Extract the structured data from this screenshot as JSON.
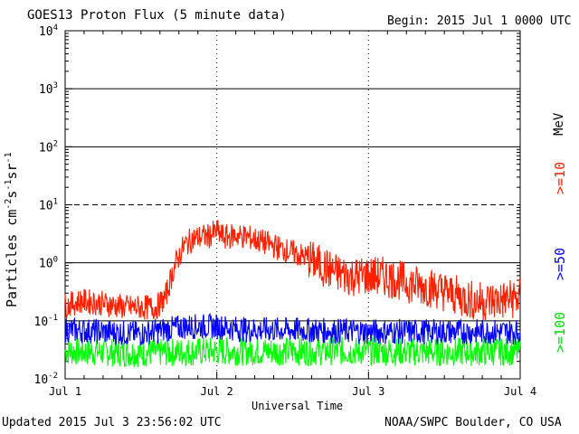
{
  "header": {
    "title": "GOES13 Proton Flux (5 minute data)",
    "begin": "Begin: 2015 Jul 1 0000 UTC"
  },
  "footer": {
    "updated": "Updated 2015 Jul  3 23:56:02 UTC",
    "source": "NOAA/SWPC Boulder, CO USA"
  },
  "colors": {
    "ge10": "#ff2000",
    "ge50": "#0000ff",
    "ge100": "#00ff00",
    "grid": "#000000",
    "background": "#ffffff"
  },
  "chart_data": {
    "type": "line",
    "title": "GOES13 Proton Flux (5 minute data)",
    "ylabel_base": "Particles cm",
    "xlabel": "Universal Time",
    "yscale": "log",
    "ylim": [
      0.01,
      10000
    ],
    "xlim_days": [
      0,
      3
    ],
    "x_ticks": [
      "Jul 1",
      "Jul 2",
      "Jul 3",
      "Jul 4"
    ],
    "y_ticks": [
      {
        "value": 0.01,
        "base": "10",
        "exp": "-2"
      },
      {
        "value": 0.1,
        "base": "10",
        "exp": "-1"
      },
      {
        "value": 1,
        "base": "10",
        "exp": "0"
      },
      {
        "value": 10,
        "base": "10",
        "exp": "1"
      },
      {
        "value": 100,
        "base": "10",
        "exp": "2"
      },
      {
        "value": 1000,
        "base": "10",
        "exp": "3"
      },
      {
        "value": 10000,
        "base": "10",
        "exp": "4"
      }
    ],
    "unit_label": "MeV",
    "series": [
      {
        "name": ">=10",
        "points": [
          [
            0.0,
            0.18
          ],
          [
            0.1,
            0.22
          ],
          [
            0.25,
            0.2
          ],
          [
            0.4,
            0.17
          ],
          [
            0.6,
            0.17
          ],
          [
            0.66,
            0.25
          ],
          [
            0.72,
            0.85
          ],
          [
            0.78,
            1.9
          ],
          [
            0.84,
            2.6
          ],
          [
            0.9,
            2.8
          ],
          [
            0.95,
            2.9
          ],
          [
            1.0,
            3.5
          ],
          [
            1.05,
            2.7
          ],
          [
            1.12,
            3.0
          ],
          [
            1.2,
            2.8
          ],
          [
            1.3,
            2.3
          ],
          [
            1.4,
            1.85
          ],
          [
            1.5,
            1.5
          ],
          [
            1.6,
            1.2
          ],
          [
            1.7,
            0.85
          ],
          [
            1.8,
            0.65
          ],
          [
            1.9,
            0.58
          ],
          [
            2.0,
            0.6
          ],
          [
            2.1,
            0.58
          ],
          [
            2.2,
            0.5
          ],
          [
            2.3,
            0.42
          ],
          [
            2.4,
            0.38
          ],
          [
            2.5,
            0.32
          ],
          [
            2.6,
            0.26
          ],
          [
            2.7,
            0.22
          ],
          [
            2.8,
            0.22
          ],
          [
            2.9,
            0.23
          ],
          [
            3.0,
            0.25
          ]
        ]
      },
      {
        "name": ">=50",
        "points": [
          [
            0.0,
            0.07
          ],
          [
            0.5,
            0.06
          ],
          [
            0.65,
            0.07
          ],
          [
            0.8,
            0.08
          ],
          [
            1.0,
            0.08
          ],
          [
            1.2,
            0.07
          ],
          [
            1.5,
            0.07
          ],
          [
            2.0,
            0.065
          ],
          [
            2.5,
            0.065
          ],
          [
            3.0,
            0.065
          ]
        ]
      },
      {
        "name": ">=100",
        "points": [
          [
            0.0,
            0.03
          ],
          [
            0.5,
            0.028
          ],
          [
            1.0,
            0.03
          ],
          [
            1.5,
            0.03
          ],
          [
            2.0,
            0.03
          ],
          [
            2.5,
            0.029
          ],
          [
            3.0,
            0.03
          ]
        ]
      }
    ],
    "grid": "horizontal lines at each decade"
  }
}
